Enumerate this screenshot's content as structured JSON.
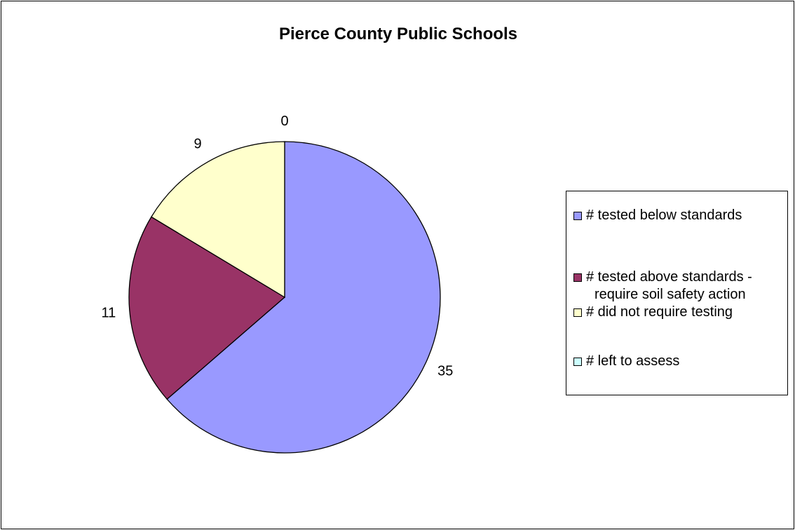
{
  "chart_data": {
    "type": "pie",
    "title": "Pierce County Public Schools",
    "categories": [
      "# tested below standards",
      "# tested above standards - require soil safety action",
      "# did not require testing",
      "# left to assess"
    ],
    "values": [
      35,
      11,
      9,
      0
    ],
    "colors": [
      "#9999FF",
      "#993366",
      "#FFFFCC",
      "#CCFFFF"
    ],
    "data_labels": [
      "35",
      "11",
      "9",
      "0"
    ],
    "legend_position": "right",
    "legend_lines": [
      [
        "# tested below standards"
      ],
      [
        "# tested above standards -",
        "require soil safety action"
      ],
      [
        "# did not require testing"
      ],
      [
        "# left to assess"
      ]
    ]
  }
}
